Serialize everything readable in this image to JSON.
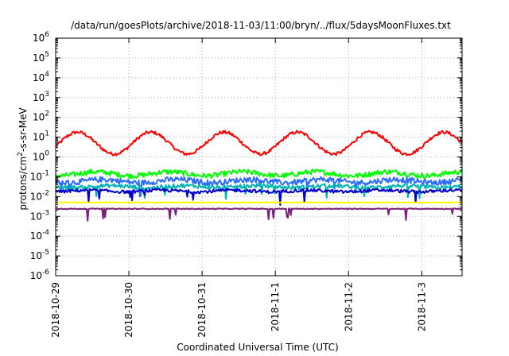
{
  "chart_data": {
    "type": "line",
    "title": "/data/run/goesPlots/archive/2018-11-03/11:00/bryn/../flux/5daysMoonFluxes.txt",
    "xlabel": "Coordinated Universal Time (UTC)",
    "ylabel_main": "protons/cm",
    "ylabel_sup": "2",
    "ylabel_tail": "-s-sr-MeV",
    "yscale": "log",
    "ylim_exp": [
      -6,
      6
    ],
    "y_tick_base": "10",
    "y_tick_exponents": [
      "-6",
      "-5",
      "-4",
      "-3",
      "-2",
      "-1",
      "0",
      "1",
      "2",
      "3",
      "4",
      "5",
      "6"
    ],
    "xlim_days": [
      0,
      5.55
    ],
    "x_tick_labels": [
      "2018-10-29",
      "2018-10-30",
      "2018-10-31",
      "2018-11-1",
      "2018-11-2",
      "2018-11-3"
    ],
    "grid": true,
    "legend": "none",
    "series": [
      {
        "color": "#ff0000",
        "mean": 0.7,
        "wave_amp": 0.55,
        "period": 1.0,
        "phase": 0.05,
        "noise": 0.08,
        "spikes": false
      },
      {
        "color": "#00ff00",
        "mean": -0.85,
        "wave_amp": 0.1,
        "period": 1.0,
        "phase": 0.3,
        "noise": 0.13,
        "spikes": false
      },
      {
        "color": "#2b6cff",
        "mean": -1.22,
        "wave_amp": 0.08,
        "period": 1.0,
        "phase": 0.4,
        "noise": 0.14,
        "spikes": true
      },
      {
        "color": "#00b4b4",
        "mean": -1.5,
        "wave_amp": 0.05,
        "period": 1.0,
        "phase": 0.5,
        "noise": 0.1,
        "spikes": true
      },
      {
        "color": "#0000cc",
        "mean": -1.72,
        "wave_amp": 0.04,
        "period": 1.0,
        "phase": 0.2,
        "noise": 0.08,
        "spikes": true
      },
      {
        "color": "#ffff00",
        "mean": -2.3,
        "wave_amp": 0.0,
        "period": 1.0,
        "phase": 0.0,
        "noise": 0.02,
        "spikes": false
      },
      {
        "color": "#7a1f7a",
        "mean": -2.62,
        "wave_amp": 0.0,
        "period": 1.0,
        "phase": 0.0,
        "noise": 0.02,
        "spikes": true
      }
    ]
  }
}
